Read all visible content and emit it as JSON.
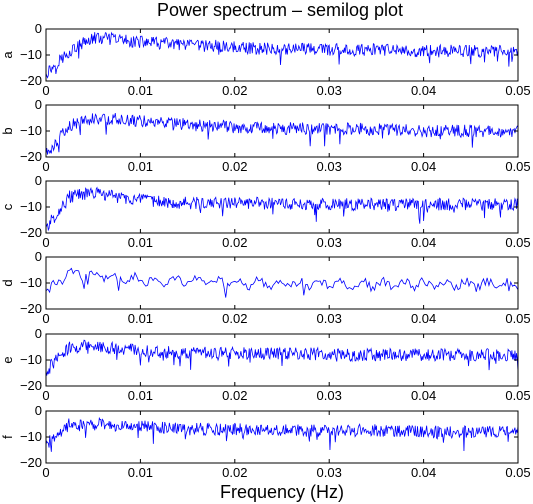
{
  "chart_data": {
    "type": "line",
    "title": "Power spectrum – semilog plot",
    "xlabel": "Frequency (Hz)",
    "xlim": [
      0,
      0.05
    ],
    "ylim": [
      -20,
      0
    ],
    "x_ticks": [
      0,
      0.01,
      0.02,
      0.03,
      0.04,
      0.05
    ],
    "x_tick_labels": [
      "0",
      "0.01",
      "0.02",
      "0.03",
      "0.04",
      "0.05"
    ],
    "y_ticks": [
      -20,
      -10,
      0
    ],
    "y_tick_labels": [
      "−20",
      "−10",
      "0"
    ],
    "grid": false,
    "line_color": "#0000ff",
    "panels": [
      {
        "ylabel": "a",
        "values": [
          -17.0,
          -8.5,
          -3.5,
          -4.0,
          -5.0,
          -5.5,
          -6.5,
          -6.5,
          -7.0,
          -7.5,
          -7.5,
          -7.5,
          -8.0,
          -8.0,
          -8.0,
          -8.5,
          -8.5,
          -8.5,
          -8.5,
          -8.5,
          -9.0
        ]
      },
      {
        "ylabel": "b",
        "values": [
          -19.0,
          -8.0,
          -5.0,
          -5.5,
          -6.0,
          -7.0,
          -7.5,
          -8.0,
          -8.5,
          -8.5,
          -9.0,
          -9.0,
          -9.0,
          -9.0,
          -9.5,
          -9.5,
          -10.0,
          -10.0,
          -10.0,
          -10.0,
          -10.0
        ]
      },
      {
        "ylabel": "c",
        "values": [
          -18.0,
          -6.0,
          -4.5,
          -6.0,
          -7.5,
          -8.0,
          -8.5,
          -8.5,
          -8.5,
          -8.5,
          -9.0,
          -9.0,
          -9.0,
          -9.0,
          -9.0,
          -9.0,
          -9.0,
          -9.0,
          -9.0,
          -9.0,
          -9.0
        ]
      },
      {
        "ylabel": "d",
        "values": [
          -13.0,
          -6.0,
          -6.5,
          -8.0,
          -8.5,
          -9.0,
          -9.5,
          -9.5,
          -10.0,
          -10.0,
          -10.0,
          -10.5,
          -10.5,
          -10.5,
          -10.5,
          -10.5,
          -10.5,
          -10.5,
          -10.5,
          -10.5,
          -10.5
        ]
      },
      {
        "ylabel": "e",
        "values": [
          -14.0,
          -5.0,
          -4.5,
          -5.5,
          -6.5,
          -7.0,
          -7.0,
          -7.5,
          -7.5,
          -7.5,
          -7.5,
          -7.5,
          -8.0,
          -8.0,
          -8.0,
          -8.0,
          -8.0,
          -8.0,
          -8.0,
          -8.0,
          -8.0
        ]
      },
      {
        "ylabel": "f",
        "values": [
          -13.0,
          -5.0,
          -5.0,
          -5.5,
          -6.0,
          -6.5,
          -7.0,
          -7.0,
          -7.0,
          -7.5,
          -7.5,
          -7.5,
          -7.5,
          -7.5,
          -7.5,
          -8.0,
          -8.0,
          -8.0,
          -8.0,
          -8.0,
          -8.0
        ]
      }
    ]
  }
}
